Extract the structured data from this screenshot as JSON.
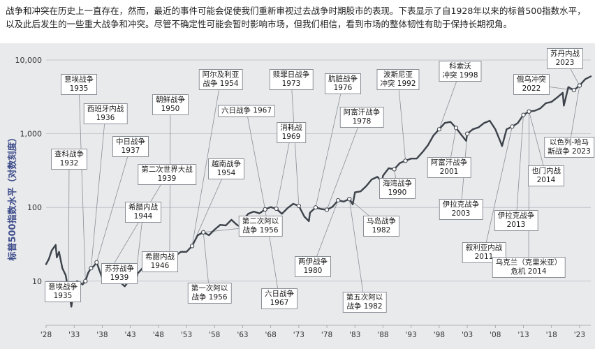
{
  "intro_text": "战争和冲突在历史上一直存在，然而，最近的事件可能会促使我们重新审视过去战争时期股市的表现。下表显示了自1928年以来的标普500指数水平，以及此后发生的一些重大战争和冲突。尽管不确定性可能会暂时影响市场，但我们相信，看到市场的整体韧性有助于保持长期视角。",
  "chart_data": {
    "type": "line",
    "title": "",
    "ylabel": "标普500指数水平（对数刻度）",
    "xlabel": "",
    "yscale": "log",
    "ylim": [
      3,
      10000
    ],
    "xlim": [
      1928,
      2025
    ],
    "grid": "horizontal",
    "line_color": "#3d434b",
    "y_ticks": [
      {
        "value": 10,
        "label": "10"
      },
      {
        "value": 100,
        "label": "100"
      },
      {
        "value": 1000,
        "label": "1,000"
      },
      {
        "value": 10000,
        "label": "10,000"
      }
    ],
    "x_ticks": [
      {
        "value": 1928,
        "label": "'28"
      },
      {
        "value": 1933,
        "label": "'33"
      },
      {
        "value": 1938,
        "label": "'38"
      },
      {
        "value": 1943,
        "label": "'43"
      },
      {
        "value": 1948,
        "label": "'48"
      },
      {
        "value": 1953,
        "label": "'53"
      },
      {
        "value": 1958,
        "label": "'58"
      },
      {
        "value": 1963,
        "label": "'63"
      },
      {
        "value": 1968,
        "label": "'68"
      },
      {
        "value": 1973,
        "label": "'73"
      },
      {
        "value": 1978,
        "label": "'78"
      },
      {
        "value": 1983,
        "label": "'83"
      },
      {
        "value": 1988,
        "label": "'88"
      },
      {
        "value": 1993,
        "label": "'93"
      },
      {
        "value": 1998,
        "label": "'98"
      },
      {
        "value": 2003,
        "label": "'03"
      },
      {
        "value": 2008,
        "label": "'08"
      },
      {
        "value": 2013,
        "label": "'13"
      },
      {
        "value": 2018,
        "label": "'18"
      },
      {
        "value": 2023,
        "label": "'23"
      }
    ],
    "series": [
      {
        "x": [
          1928,
          1928.5,
          1929,
          1929.7,
          1929.9,
          1930.3,
          1930.9,
          1931.5,
          1931.9,
          1932.3,
          1932.5,
          1933,
          1933.5,
          1934,
          1934.5,
          1935,
          1935.5,
          1936,
          1936.5,
          1937,
          1937.5,
          1938,
          1938.5,
          1939,
          1939.7,
          1940,
          1940.5,
          1941,
          1942,
          1942.5,
          1943,
          1944,
          1945,
          1946,
          1946.5,
          1947,
          1948,
          1949,
          1950,
          1951,
          1952,
          1953,
          1954,
          1955,
          1956,
          1957,
          1958,
          1959,
          1960,
          1961,
          1962,
          1962.5,
          1963,
          1964,
          1965,
          1966,
          1967,
          1968,
          1969,
          1970,
          1971,
          1972,
          1973,
          1974,
          1974.8,
          1975,
          1976,
          1977,
          1978,
          1979,
          1980,
          1981,
          1982,
          1982.6,
          1983,
          1984,
          1985,
          1986,
          1987,
          1987.8,
          1988,
          1989,
          1990,
          1991,
          1992,
          1993,
          1994,
          1995,
          1996,
          1997,
          1998,
          1999,
          2000,
          2001,
          2002,
          2002.8,
          2003,
          2004,
          2005,
          2006,
          2007,
          2008,
          2009,
          2009.2,
          2010,
          2011,
          2012,
          2013,
          2014,
          2015,
          2016,
          2017,
          2018,
          2019,
          2020,
          2020.2,
          2021,
          2022,
          2023,
          2024,
          2025
        ],
        "values": [
          17,
          20,
          26,
          31,
          21,
          25,
          15,
          12,
          8,
          5.5,
          4.5,
          8,
          10,
          9.5,
          9,
          10,
          13,
          15,
          16,
          18,
          14,
          11,
          13,
          12.5,
          12,
          11.5,
          10,
          10,
          8.5,
          9.5,
          11.5,
          12,
          14.5,
          18,
          15,
          15,
          15,
          16,
          18,
          22,
          25,
          25,
          30,
          42,
          46,
          42,
          50,
          58,
          57,
          68,
          58,
          55,
          68,
          82,
          88,
          83,
          94,
          101,
          96,
          82,
          98,
          112,
          105,
          75,
          65,
          85,
          100,
          95,
          93,
          102,
          125,
          120,
          130,
          110,
          160,
          165,
          195,
          240,
          260,
          225,
          270,
          340,
          330,
          400,
          430,
          460,
          460,
          560,
          700,
          950,
          1150,
          1400,
          1450,
          1200,
          950,
          800,
          1000,
          1150,
          1220,
          1400,
          1500,
          1150,
          750,
          680,
          1150,
          1250,
          1400,
          1800,
          2000,
          2050,
          2200,
          2600,
          2700,
          3100,
          3600,
          2400,
          4300,
          3900,
          4500,
          5500,
          6000
        ]
      }
    ],
    "annotations": [
      {
        "label": [
          "意埃战争",
          "1935"
        ],
        "x": 1935
      },
      {
        "label": [
          "西班牙内战",
          "1936"
        ],
        "x": 1936
      },
      {
        "label": [
          "中日战争",
          "1937"
        ],
        "x": 1937
      },
      {
        "label": [
          "查科战争",
          "1932"
        ],
        "x": 1932
      },
      {
        "label": [
          "希腊内战",
          "1944"
        ],
        "x": 1944
      },
      {
        "label": [
          "朝鲜战争",
          "1950"
        ],
        "x": 1950
      },
      {
        "label": [
          "第二次世界大战",
          "1939"
        ],
        "x": 1939
      },
      {
        "label": [
          "阿尔及利亚",
          "战争 1954"
        ],
        "x": 1954
      },
      {
        "label": [
          "越南战争",
          "1954"
        ],
        "x": 1954
      },
      {
        "label": [
          "六日战争 1967"
        ],
        "x": 1967
      },
      {
        "label": [
          "赎罪日战争",
          "1973"
        ],
        "x": 1973
      },
      {
        "label": [
          "消耗战",
          "1969"
        ],
        "x": 1969
      },
      {
        "label": [
          "肮脏战争",
          "1976"
        ],
        "x": 1976
      },
      {
        "label": [
          "阿富汗战争",
          "1978"
        ],
        "x": 1978
      },
      {
        "label": [
          "波斯尼亚",
          "冲突 1992"
        ],
        "x": 1992
      },
      {
        "label": [
          "科索沃",
          "冲突 1998"
        ],
        "x": 1998
      },
      {
        "label": [
          "苏丹内战",
          "2023"
        ],
        "x": 2023
      },
      {
        "label": [
          "俄乌冲突",
          "2022"
        ],
        "x": 2022
      },
      {
        "label": [
          "以色列-哈马",
          "斯战争 2023"
        ],
        "x": 2023
      },
      {
        "label": [
          "阿富汗战争",
          "2001"
        ],
        "x": 2001
      },
      {
        "label": [
          "海湾战争",
          "1990"
        ],
        "x": 1990
      },
      {
        "label": [
          "伊拉克战争",
          "2003"
        ],
        "x": 2003
      },
      {
        "label": [
          "也门内战",
          "2014"
        ],
        "x": 2014
      },
      {
        "label": [
          "伊拉克战争",
          "2013"
        ],
        "x": 2013
      },
      {
        "label": [
          "叙利亚内战",
          "2011"
        ],
        "x": 2011
      },
      {
        "label": [
          "乌克兰（克里米亚）",
          "危机 2014"
        ],
        "x": 2014
      },
      {
        "label": [
          "第二次阿以",
          "战争 1956"
        ],
        "x": 1956
      },
      {
        "label": [
          "马岛战争",
          "1982"
        ],
        "x": 1982
      },
      {
        "label": [
          "两伊战争",
          "1980"
        ],
        "x": 1980
      },
      {
        "label": [
          "第五次阿以",
          "战争 1982"
        ],
        "x": 1982
      },
      {
        "label": [
          "六日战争",
          "1967"
        ],
        "x": 1967
      },
      {
        "label": [
          "第一次阿以",
          "战争 1956"
        ],
        "x": 1956
      },
      {
        "label": [
          "希腊内战",
          "1946"
        ],
        "x": 1946
      },
      {
        "label": [
          "苏芬战争",
          "1939"
        ],
        "x": 1939
      },
      {
        "label": [
          "意埃战争",
          "1935"
        ],
        "x": 1935
      }
    ]
  }
}
